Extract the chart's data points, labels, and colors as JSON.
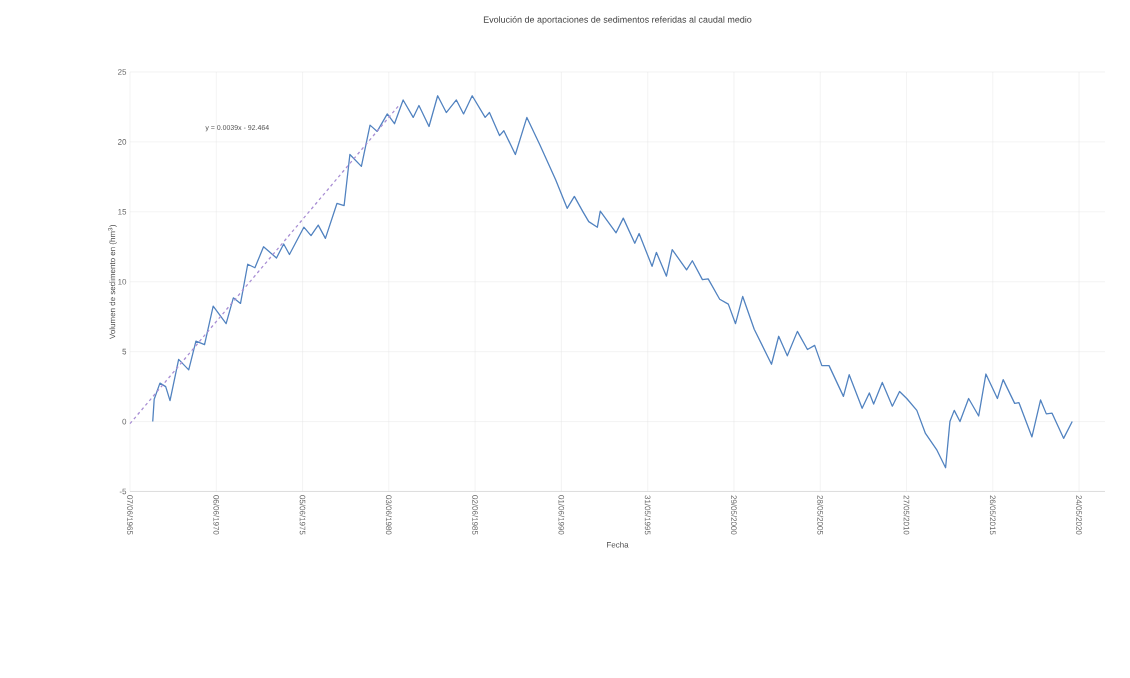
{
  "chart_data": {
    "type": "line",
    "title": "Evolución de aportaciones de sedimentos referidas al caudal medio",
    "xlabel": "Fecha",
    "ylabel": "Volumen de sedimento en (hm$^{3}$)",
    "xlim": [
      "1965-06-07",
      "2021-11-25"
    ],
    "ylim": [
      -5,
      25
    ],
    "xticks": [
      {
        "value": "1965-06-07",
        "label": "07/06/1965"
      },
      {
        "value": "1970-06-06",
        "label": "06/06/1970"
      },
      {
        "value": "1975-06-05",
        "label": "05/06/1975"
      },
      {
        "value": "1980-06-03",
        "label": "03/06/1980"
      },
      {
        "value": "1985-06-02",
        "label": "02/06/1985"
      },
      {
        "value": "1990-06-01",
        "label": "01/06/1990"
      },
      {
        "value": "1995-05-31",
        "label": "31/05/1995"
      },
      {
        "value": "2000-05-29",
        "label": "29/05/2000"
      },
      {
        "value": "2005-05-28",
        "label": "28/05/2005"
      },
      {
        "value": "2010-05-27",
        "label": "27/05/2010"
      },
      {
        "value": "2015-05-26",
        "label": "26/05/2015"
      },
      {
        "value": "2020-05-24",
        "label": "24/05/2020"
      }
    ],
    "yticks": [
      -5,
      0,
      5,
      10,
      15,
      20,
      25
    ],
    "grid": true,
    "marker": "none",
    "annotations": [
      "y = 0.0039x - 92.464"
    ],
    "series": [
      {
        "color": "#5283c0",
        "line_style": "solid",
        "x": [
          "1966-10",
          "1966-11",
          "1967-03",
          "1967-07",
          "1967-10",
          "1968-04",
          "1968-11",
          "1969-04",
          "1969-10",
          "1970-04",
          "1971-01",
          "1971-06",
          "1971-11",
          "1972-04",
          "1972-09",
          "1973-03",
          "1973-12",
          "1974-05",
          "1974-09",
          "1975-07",
          "1975-12",
          "1976-05",
          "1976-10",
          "1977-06",
          "1977-11",
          "1978-03",
          "1978-11",
          "1979-05",
          "1979-10",
          "1980-05",
          "1980-10",
          "1981-04",
          "1981-11",
          "1982-03",
          "1982-10",
          "1983-04",
          "1983-10",
          "1984-05",
          "1984-10",
          "1985-04",
          "1986-01",
          "1986-04",
          "1986-11",
          "1987-02",
          "1987-10",
          "1988-06",
          "1989-03",
          "1990-02",
          "1990-10",
          "1991-03",
          "1991-09",
          "1992-01",
          "1992-07",
          "1992-09",
          "1993-08",
          "1994-01",
          "1994-09",
          "1994-12",
          "1995-09",
          "1995-12",
          "1996-07",
          "1996-11",
          "1997-09",
          "1998-01",
          "1998-08",
          "1998-12",
          "1999-08",
          "2000-02",
          "2000-07",
          "2000-12",
          "2001-08",
          "2002-08",
          "2003-01",
          "2003-07",
          "2004-02",
          "2004-09",
          "2005-02",
          "2005-07",
          "2005-12",
          "2006-10",
          "2007-02",
          "2007-11",
          "2008-04",
          "2008-07",
          "2009-01",
          "2009-08",
          "2010-01",
          "2010-06",
          "2011-01",
          "2011-07",
          "2012-03",
          "2012-09",
          "2012-12",
          "2013-03",
          "2013-07",
          "2014-01",
          "2014-08",
          "2015-01",
          "2015-09",
          "2016-01",
          "2016-09",
          "2016-12",
          "2017-09",
          "2018-03",
          "2018-07",
          "2018-11",
          "2019-07",
          "2020-01"
        ],
        "values": [
          0,
          1.6,
          2.75,
          2.5,
          1.5,
          4.45,
          3.7,
          5.75,
          5.5,
          8.25,
          7.0,
          8.85,
          8.45,
          11.25,
          11.0,
          12.5,
          11.7,
          12.7,
          11.95,
          13.9,
          13.3,
          14.05,
          13.1,
          15.6,
          15.45,
          19.1,
          18.25,
          21.2,
          20.75,
          22.0,
          21.3,
          23.0,
          21.75,
          22.6,
          21.1,
          23.3,
          22.1,
          23.0,
          22.0,
          23.3,
          21.75,
          22.1,
          20.45,
          20.8,
          19.1,
          21.75,
          19.8,
          17.3,
          15.25,
          16.1,
          15.0,
          14.3,
          13.9,
          15.05,
          13.5,
          14.55,
          12.75,
          13.45,
          11.1,
          12.1,
          10.4,
          12.3,
          10.85,
          11.5,
          10.15,
          10.2,
          8.75,
          8.4,
          7.0,
          8.95,
          6.6,
          4.1,
          6.1,
          4.7,
          6.45,
          5.15,
          5.45,
          4.0,
          4.0,
          1.8,
          3.35,
          0.95,
          2.05,
          1.25,
          2.8,
          1.1,
          2.15,
          1.65,
          0.8,
          -0.85,
          -2.05,
          -3.3,
          0,
          0.8,
          0,
          1.65,
          0.4,
          3.4,
          1.65,
          3.0,
          1.3,
          1.35,
          -1.1,
          1.55,
          0.55,
          0.6,
          -1.2,
          0
        ]
      },
      {
        "color": "#a98fd4",
        "line_style": "dashed",
        "x": [
          "1965-06-07",
          "1981-01"
        ],
        "values": [
          -0.15,
          22.6
        ]
      }
    ]
  }
}
